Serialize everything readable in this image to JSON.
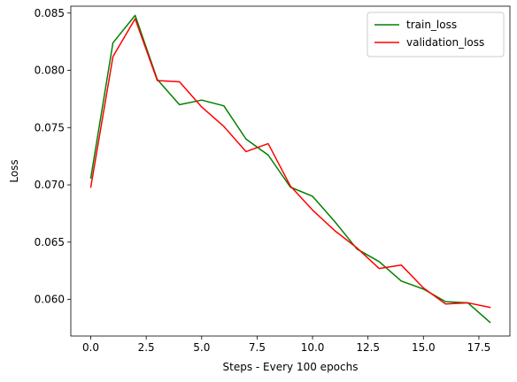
{
  "chart_data": {
    "type": "line",
    "title": "",
    "xlabel": "Steps - Every 100 epochs",
    "ylabel": "Loss",
    "xlim": [
      -0.9,
      18.9
    ],
    "ylim": [
      0.0568,
      0.0856
    ],
    "xticks": [
      0.0,
      2.5,
      5.0,
      7.5,
      10.0,
      12.5,
      15.0,
      17.5
    ],
    "xtick_labels": [
      "0.0",
      "2.5",
      "5.0",
      "7.5",
      "10.0",
      "12.5",
      "15.0",
      "17.5"
    ],
    "yticks": [
      0.06,
      0.065,
      0.07,
      0.075,
      0.08,
      0.085
    ],
    "ytick_labels": [
      "0.060",
      "0.065",
      "0.070",
      "0.075",
      "0.080",
      "0.085"
    ],
    "grid": false,
    "legend_position": "top-right",
    "x": [
      0,
      1,
      2,
      3,
      4,
      5,
      6,
      7,
      8,
      9,
      10,
      11,
      12,
      13,
      14,
      15,
      16,
      17,
      18
    ],
    "series": [
      {
        "name": "train_loss",
        "color": "#008000",
        "values": [
          0.0706,
          0.0824,
          0.0848,
          0.0792,
          0.077,
          0.0774,
          0.0769,
          0.074,
          0.0726,
          0.0698,
          0.069,
          0.0668,
          0.0644,
          0.0633,
          0.0616,
          0.0609,
          0.0598,
          0.0597,
          0.058
        ]
      },
      {
        "name": "validation_loss",
        "color": "#ff0000",
        "values": [
          0.0698,
          0.0812,
          0.0845,
          0.0791,
          0.079,
          0.0768,
          0.0751,
          0.0729,
          0.0736,
          0.0699,
          0.0678,
          0.066,
          0.0645,
          0.0627,
          0.063,
          0.061,
          0.0596,
          0.0597,
          0.0593
        ]
      }
    ]
  }
}
